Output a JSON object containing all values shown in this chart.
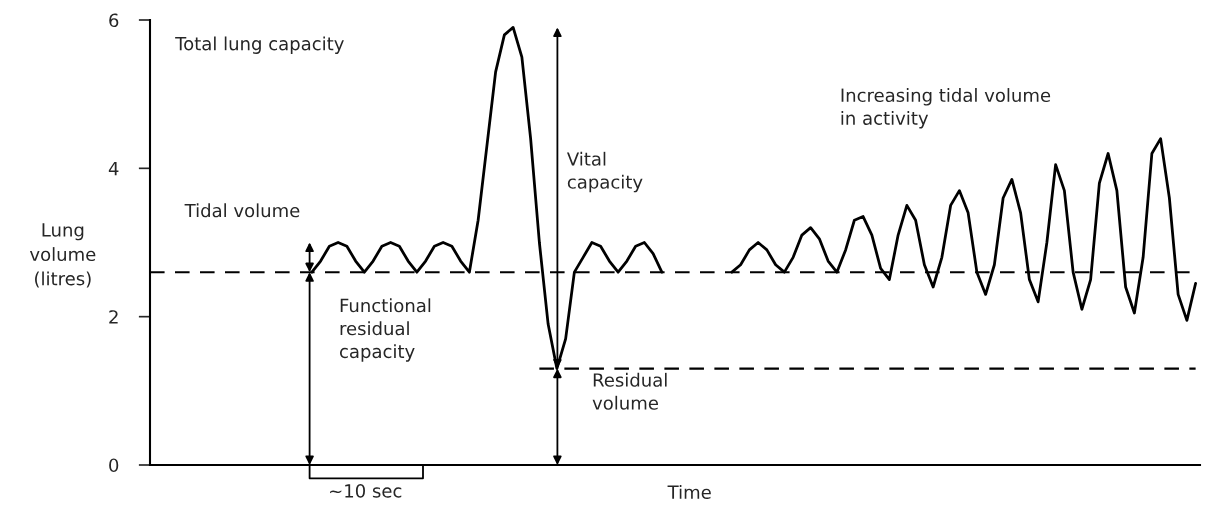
{
  "chart_data": {
    "type": "line",
    "xlabel": "Time",
    "ylabel": "Lung\nvolume\n(litres)",
    "categories": [
      null,
      null,
      null,
      null,
      null,
      null,
      null,
      null,
      null,
      null,
      null,
      null,
      null,
      null,
      null,
      null,
      null,
      null,
      null,
      null,
      null,
      null,
      null,
      null,
      null,
      null,
      null,
      null,
      null,
      null,
      null,
      null,
      null,
      null,
      null,
      null,
      null,
      null,
      null,
      null,
      null,
      null,
      null,
      null,
      null,
      null,
      null,
      null,
      null,
      null,
      null,
      null,
      null,
      null,
      null,
      null,
      null,
      null,
      null,
      null,
      null,
      null,
      null,
      null,
      null,
      null,
      null,
      null,
      null,
      null,
      null,
      null,
      null,
      null,
      null,
      null,
      null,
      null,
      null,
      null,
      null,
      null,
      null,
      null,
      null,
      null,
      null,
      null,
      null,
      null,
      null,
      null,
      null,
      null,
      null,
      null,
      null,
      null,
      null,
      null,
      null,
      null,
      null,
      null,
      null,
      null,
      null,
      null,
      null,
      null,
      null,
      null,
      null,
      null,
      null,
      null,
      null,
      null,
      null,
      null
    ],
    "series": [
      {
        "color": "#000000",
        "values": [
          null,
          null,
          null,
          null,
          null,
          null,
          null,
          null,
          null,
          null,
          null,
          null,
          null,
          null,
          null,
          null,
          null,
          null,
          2.6,
          2.75,
          2.95,
          3.0,
          2.95,
          2.75,
          2.6,
          2.75,
          2.95,
          3.0,
          2.95,
          2.75,
          2.6,
          2.75,
          2.95,
          3.0,
          2.95,
          2.75,
          2.6,
          3.3,
          4.3,
          5.3,
          5.8,
          5.9,
          5.5,
          4.4,
          3.0,
          1.9,
          1.3,
          1.7,
          2.6,
          2.8,
          3.0,
          2.95,
          2.75,
          2.6,
          2.75,
          2.95,
          3.0,
          2.85,
          2.6,
          null,
          null,
          null,
          null,
          null,
          null,
          null,
          null,
          null,
          null,
          null,
          null,
          null,
          null,
          null,
          null,
          null,
          null,
          null,
          null,
          null,
          null,
          null,
          null,
          null,
          null,
          null,
          null,
          null,
          null,
          null,
          null,
          null,
          null,
          null,
          null,
          null,
          null,
          null,
          null,
          null,
          null,
          null,
          null,
          null,
          null,
          null,
          null,
          null,
          null,
          null,
          null,
          null,
          null,
          null,
          null,
          null,
          null,
          null,
          null,
          null
        ]
      },
      {
        "color": "#000000",
        "values": [
          null,
          null,
          null,
          null,
          null,
          null,
          null,
          null,
          null,
          null,
          null,
          null,
          null,
          null,
          null,
          null,
          null,
          null,
          null,
          null,
          null,
          null,
          null,
          null,
          null,
          null,
          null,
          null,
          null,
          null,
          null,
          null,
          null,
          null,
          null,
          null,
          null,
          null,
          null,
          null,
          null,
          null,
          null,
          null,
          null,
          null,
          null,
          null,
          null,
          null,
          null,
          null,
          null,
          null,
          null,
          null,
          null,
          null,
          null,
          null,
          null,
          null,
          null,
          null,
          null,
          null,
          2.6,
          2.7,
          2.9,
          3.0,
          2.9,
          2.7,
          2.6,
          2.8,
          3.1,
          3.2,
          3.05,
          2.75,
          2.6,
          2.9,
          3.3,
          3.35,
          3.1,
          2.65,
          2.5,
          3.1,
          3.5,
          3.3,
          2.7,
          2.4,
          2.8,
          3.5,
          3.7,
          3.4,
          2.6,
          2.3,
          2.7,
          3.6,
          3.85,
          3.4,
          2.5,
          2.2,
          3.0,
          4.05,
          3.7,
          2.6,
          2.1,
          2.5,
          3.8,
          4.2,
          3.7,
          2.4,
          2.05,
          2.8,
          4.2,
          4.4,
          3.6,
          2.3,
          1.95,
          2.45
        ]
      },
      {
        "color": "#000000",
        "line_style": "dashed",
        "values": [
          null,
          null,
          null,
          null,
          null,
          null,
          null,
          null,
          null,
          null,
          null,
          null,
          null,
          null,
          null,
          null,
          null,
          null,
          null,
          null,
          null,
          null,
          null,
          null,
          null,
          null,
          null,
          null,
          null,
          null,
          null,
          null,
          null,
          null,
          null,
          null,
          null,
          null,
          null,
          null,
          null,
          null,
          null,
          null,
          1.3,
          1.3,
          1.3,
          1.3,
          1.3,
          1.3,
          1.3,
          1.3,
          1.3,
          1.3,
          1.3,
          1.3,
          1.3,
          1.3,
          1.3,
          1.3,
          1.3,
          1.3,
          1.3,
          1.3,
          1.3,
          1.3,
          1.3,
          1.3,
          1.3,
          1.3,
          1.3,
          1.3,
          1.3,
          1.3,
          1.3,
          1.3,
          1.3,
          1.3,
          1.3,
          1.3,
          1.3,
          1.3,
          1.3,
          1.3,
          1.3,
          1.3,
          1.3,
          1.3,
          1.3,
          1.3,
          1.3,
          1.3,
          1.3,
          1.3,
          1.3,
          1.3,
          1.3,
          1.3,
          1.3,
          1.3,
          1.3,
          1.3,
          1.3,
          1.3,
          1.3,
          1.3,
          1.3,
          1.3,
          1.3,
          1.3,
          1.3,
          1.3,
          1.3,
          1.3,
          1.3,
          1.3,
          1.3,
          1.3,
          1.3,
          1.3
        ]
      }
    ],
    "ref_lines": [
      {
        "axis": "y",
        "value": 2.6,
        "line_style": "dashed",
        "color": "#000000"
      }
    ],
    "ylim": [
      0,
      6
    ],
    "yticks": [
      0,
      2,
      4,
      6
    ],
    "tick_labels": "y",
    "line_style": "solid",
    "marker": "none",
    "legend": false,
    "grid": false,
    "annotations": [
      "Total lung capacity",
      "Tidal volume",
      "Vital\ncapacity",
      "Functional\nresidual\ncapacity",
      "Residual\nvolume",
      "Increasing tidal volume\nin activity",
      "~10 sec"
    ]
  }
}
